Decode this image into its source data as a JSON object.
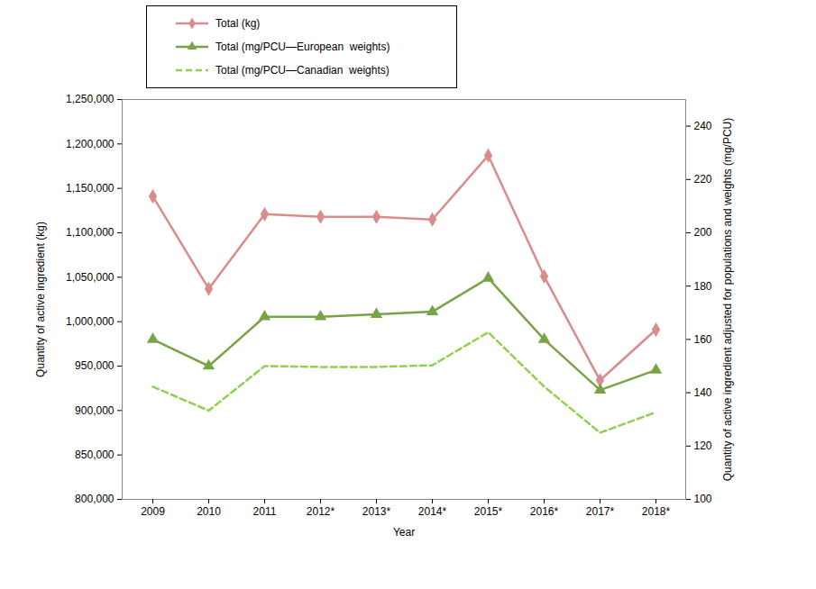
{
  "chart_data": {
    "type": "line",
    "x_label": "Year",
    "y_label": "Quantity of active ingredient (kg)",
    "y2_label": "Quantity of active ingredient adjusted for populations and weights (mg/PCU)",
    "categories": [
      "2009",
      "2010",
      "2011",
      "2012*",
      "2013*",
      "2014*",
      "2015*",
      "2016*",
      "2017*",
      "2018*"
    ],
    "ylim": [
      800000,
      1250000
    ],
    "yticks": [
      {
        "value": 800000,
        "label": "800,000"
      },
      {
        "value": 850000,
        "label": "850,000"
      },
      {
        "value": 900000,
        "label": "900,000"
      },
      {
        "value": 950000,
        "label": "950,000"
      },
      {
        "value": 1000000,
        "label": "1,000,000"
      },
      {
        "value": 1050000,
        "label": "1,050,000"
      },
      {
        "value": 1100000,
        "label": "1,100,000"
      },
      {
        "value": 1150000,
        "label": "1,150,000"
      },
      {
        "value": 1200000,
        "label": "1,200,000"
      },
      {
        "value": 1250000,
        "label": "1,250,000"
      }
    ],
    "y2lim": [
      100,
      250
    ],
    "y2ticks": [
      100,
      120,
      140,
      160,
      180,
      200,
      220,
      240
    ],
    "legend": "top-left",
    "series": [
      {
        "name": "Total (kg)",
        "color": "#d98c8c",
        "marker": "diamond",
        "line_style": "solid",
        "values": [
          1141000,
          1037000,
          1121000,
          1118000,
          1118000,
          1115000,
          1187000,
          1051000,
          934000,
          991000
        ]
      },
      {
        "name": "Total (mg/PCU—European  weights)",
        "color": "#77a545",
        "marker": "triangle",
        "line_style": "solid",
        "axis": "y2",
        "values": [
          160,
          150,
          168.5,
          168.5,
          169.4,
          170.4,
          183,
          160,
          141,
          148.5
        ]
      },
      {
        "name": "Total (mg/PCU—Canadian  weights)",
        "color": "#92d050",
        "marker": "none",
        "line_style": "dashed",
        "axis": "y2",
        "values": [
          142.3,
          133.3,
          150,
          149.7,
          149.7,
          150.3,
          162.7,
          142.3,
          125,
          132.7
        ]
      }
    ]
  }
}
